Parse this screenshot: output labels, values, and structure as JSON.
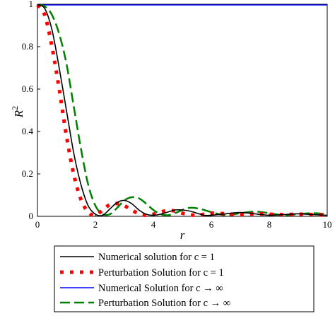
{
  "chart_data": {
    "type": "line",
    "xlabel": "r",
    "ylabel": "R",
    "ylabel_superscript": "2",
    "xlim": [
      0,
      10
    ],
    "ylim": [
      0,
      1
    ],
    "x_ticks": [
      "0",
      "2",
      "4",
      "6",
      "8",
      "10"
    ],
    "y_ticks": [
      "0",
      "0.2",
      "0.4",
      "0.6",
      "0.8",
      "1"
    ],
    "grid": false,
    "legend_position": "bottom-outside",
    "series": [
      {
        "name": "Numerical solution for c = 1",
        "color": "#000000",
        "style": "solid",
        "x": [
          0,
          0.25,
          0.5,
          0.75,
          1.0,
          1.25,
          1.5,
          1.75,
          2.0,
          2.25,
          2.5,
          2.75,
          3.0,
          3.25,
          3.5,
          3.75,
          4.0,
          4.25,
          4.5,
          4.75,
          5.0,
          5.25,
          5.5,
          5.75,
          6.0,
          6.5,
          7.0,
          7.5,
          8.0,
          8.5,
          9.0,
          9.5,
          10.0
        ],
        "y": [
          1.0,
          0.98,
          0.88,
          0.7,
          0.5,
          0.3,
          0.15,
          0.05,
          0.01,
          0.005,
          0.035,
          0.065,
          0.075,
          0.06,
          0.03,
          0.01,
          0.005,
          0.01,
          0.02,
          0.03,
          0.03,
          0.025,
          0.015,
          0.005,
          0.005,
          0.012,
          0.018,
          0.012,
          0.005,
          0.008,
          0.012,
          0.008,
          0.005
        ]
      },
      {
        "name": "Perturbation Solution for c = 1",
        "color": "#ff0000",
        "style": "dotted",
        "x": [
          0,
          0.25,
          0.5,
          0.75,
          1.0,
          1.25,
          1.5,
          1.75,
          2.0,
          2.25,
          2.5,
          2.75,
          3.0,
          3.25,
          3.5,
          3.75,
          4.0,
          4.25,
          4.5,
          4.75,
          5.0,
          5.25,
          5.5,
          5.75,
          6.0,
          6.5,
          7.0,
          7.5,
          8.0,
          8.5,
          9.0,
          9.5,
          10.0
        ],
        "y": [
          1.0,
          0.95,
          0.8,
          0.6,
          0.38,
          0.2,
          0.08,
          0.02,
          0.005,
          0.03,
          0.055,
          0.06,
          0.05,
          0.03,
          0.012,
          0.005,
          0.01,
          0.02,
          0.028,
          0.025,
          0.015,
          0.008,
          0.005,
          0.01,
          0.015,
          0.012,
          0.008,
          0.012,
          0.01,
          0.008,
          0.01,
          0.008,
          0.005
        ]
      },
      {
        "name": "Numerical Solution for c → ∞",
        "color": "#0000ff",
        "style": "solid",
        "x": [
          0,
          10
        ],
        "y": [
          1.0,
          1.0
        ]
      },
      {
        "name": "Perturbation Solution for c → ∞",
        "color": "#008000",
        "style": "dashed",
        "x": [
          0,
          0.25,
          0.5,
          0.75,
          1.0,
          1.25,
          1.5,
          1.75,
          2.0,
          2.25,
          2.5,
          2.75,
          3.0,
          3.25,
          3.5,
          3.75,
          4.0,
          4.25,
          4.5,
          4.75,
          5.0,
          5.25,
          5.5,
          5.75,
          6.0,
          6.5,
          7.0,
          7.5,
          8.0,
          8.5,
          9.0,
          9.5,
          10.0
        ],
        "y": [
          1.0,
          0.99,
          0.95,
          0.86,
          0.72,
          0.52,
          0.32,
          0.15,
          0.05,
          0.01,
          0.01,
          0.04,
          0.075,
          0.09,
          0.085,
          0.06,
          0.03,
          0.01,
          0.005,
          0.015,
          0.03,
          0.04,
          0.038,
          0.03,
          0.02,
          0.005,
          0.015,
          0.022,
          0.015,
          0.005,
          0.01,
          0.015,
          0.01
        ]
      }
    ]
  }
}
